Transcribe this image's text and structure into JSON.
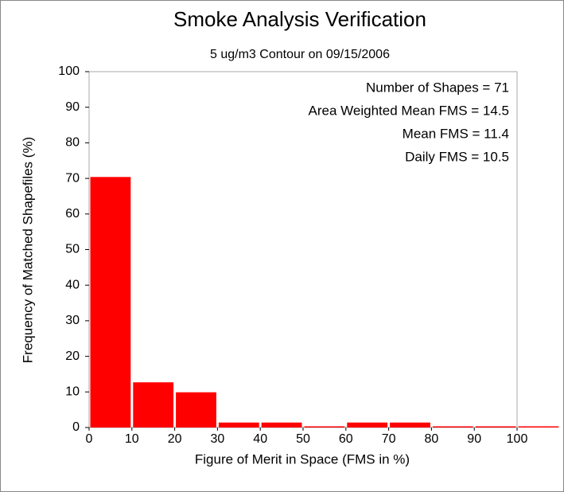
{
  "chart_data": {
    "type": "histogram",
    "title": "Smoke Analysis Verification",
    "subtitle": "5 ug/m3 Contour on 09/15/2006",
    "x_label": "Figure of Merit in Space (FMS in %)",
    "y_label": "Frequency of Matched Shapefiles (%)",
    "annotations": [
      "Number of Shapes = 71",
      "Area Weighted Mean FMS = 14.5",
      "Mean FMS = 11.4",
      "Daily FMS = 10.5"
    ],
    "bins": [
      0,
      10,
      20,
      30,
      40,
      50,
      60,
      70,
      80,
      90,
      100,
      110
    ],
    "values": [
      70.4,
      12.7,
      9.9,
      1.4,
      1.4,
      0,
      1.4,
      1.4,
      0,
      0,
      0
    ],
    "color": "#ff0000",
    "xlim": [
      0,
      100
    ],
    "ylim": [
      0,
      100
    ],
    "xticks": [
      0,
      10,
      20,
      30,
      40,
      50,
      60,
      70,
      80,
      90,
      100
    ],
    "yticks": [
      0,
      10,
      20,
      30,
      40,
      50,
      60,
      70,
      80,
      90,
      100
    ]
  }
}
